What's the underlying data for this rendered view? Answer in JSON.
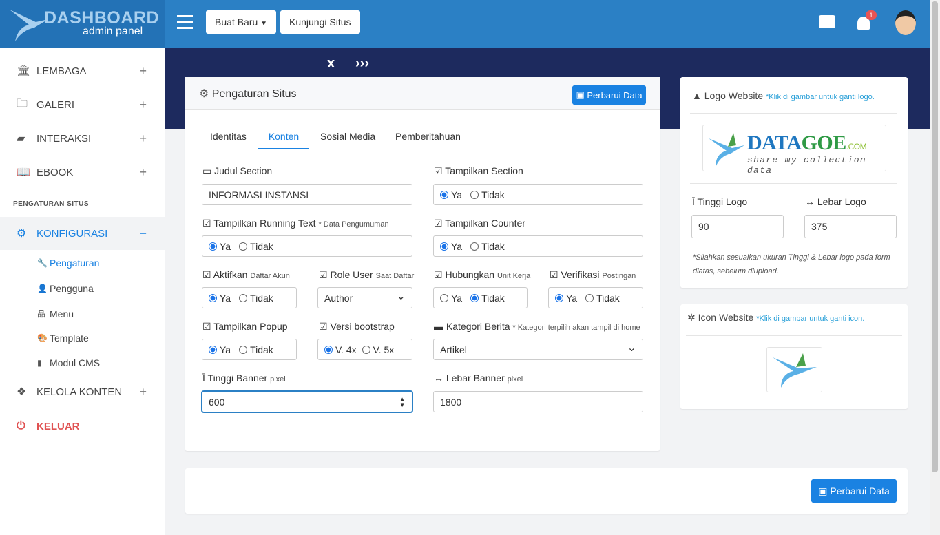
{
  "brand": {
    "title": "DASHBOARD",
    "subtitle": "admin panel"
  },
  "header": {
    "new_label": "Buat Baru",
    "visit_label": "Kunjungi Situs",
    "notif_count": "1"
  },
  "sidebar": {
    "items": [
      {
        "label": "LEMBAGA"
      },
      {
        "label": "GALERI"
      },
      {
        "label": "INTERAKSI"
      },
      {
        "label": "EBOOK"
      }
    ],
    "section": "PENGATURAN SITUS",
    "config": "KONFIGURASI",
    "sub": [
      "Pengaturan",
      "Pengguna",
      "Menu",
      "Template",
      "Modul CMS"
    ],
    "kelola": "KELOLA KONTEN",
    "logout": "KELUAR"
  },
  "main": {
    "title": "Pengaturan Situs",
    "update_label": "Perbarui Data",
    "tabs": [
      "Identitas",
      "Konten",
      "Sosial Media",
      "Pemberitahuan"
    ],
    "active_tab": "Konten",
    "yes": "Ya",
    "no": "Tidak",
    "fields": {
      "judul": {
        "label": "Judul Section",
        "value": "INFORMASI INSTANSI"
      },
      "tampil_section": {
        "label": "Tampilkan Section",
        "value": "Ya"
      },
      "running": {
        "label": "Tampilkan Running Text",
        "note": "* Data Pengumuman",
        "value": "Ya"
      },
      "counter": {
        "label": "Tampilkan Counter",
        "value": "Ya"
      },
      "aktifkan": {
        "label": "Aktifkan",
        "note": "Daftar Akun",
        "value": "Ya"
      },
      "role": {
        "label": "Role User",
        "note": "Saat Daftar",
        "value": "Author"
      },
      "hubungkan": {
        "label": "Hubungkan",
        "note": "Unit Kerja",
        "value": "Tidak"
      },
      "verifikasi": {
        "label": "Verifikasi",
        "note": "Postingan",
        "value": "Ya"
      },
      "popup": {
        "label": "Tampilkan Popup",
        "value": "Ya"
      },
      "bootstrap": {
        "label": "Versi bootstrap",
        "opt1": "V. 4x",
        "opt2": "V. 5x",
        "value": "V. 4x"
      },
      "kategori": {
        "label": "Kategori Berita",
        "note": "* Kategori terpilih akan tampil di home",
        "value": "Artikel"
      },
      "tinggi_banner": {
        "label": "Tinggi Banner",
        "note": "pixel",
        "value": "600"
      },
      "lebar_banner": {
        "label": "Lebar Banner",
        "note": "pixel",
        "value": "1800"
      }
    }
  },
  "logo": {
    "title": "Logo Website",
    "hint": "*Klik di gambar untuk ganti logo.",
    "brand_main": "DATA",
    "brand_accent": "GOE",
    "brand_tld": ".COM",
    "tagline": "share my collection data",
    "tinggi_label": "Tinggi Logo",
    "tinggi": "90",
    "lebar_label": "Lebar Logo",
    "lebar": "375",
    "note": "*Silahkan sesuaikan ukuran Tinggi & Lebar logo pada form diatas, sebelum diupload."
  },
  "icon": {
    "title": "Icon Website",
    "hint": "*Klik di gambar untuk ganti icon."
  },
  "footer": {
    "update_label": "Perbarui Data"
  }
}
